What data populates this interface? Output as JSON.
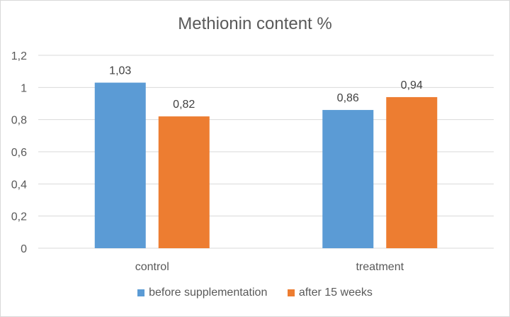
{
  "chart_data": {
    "type": "bar",
    "title": "Methionin content %",
    "categories": [
      "control",
      "treatment"
    ],
    "series": [
      {
        "name": "before supplementation",
        "values": [
          1.03,
          0.86
        ],
        "labels": [
          "1,03",
          "0,86"
        ],
        "color": "#5b9bd5"
      },
      {
        "name": "after 15 weeks",
        "values": [
          0.82,
          0.94
        ],
        "labels": [
          "0,82",
          "0,94"
        ],
        "color": "#ed7d31"
      }
    ],
    "ylim": [
      0,
      1.2
    ],
    "yticks": [
      0,
      0.2,
      0.4,
      0.6,
      0.8,
      1,
      1.2
    ],
    "ytick_labels": [
      "0",
      "0,2",
      "0,4",
      "0,6",
      "0,8",
      "1",
      "1,2"
    ],
    "xlabel": "",
    "ylabel": "",
    "grid": true,
    "legend_position": "bottom"
  }
}
